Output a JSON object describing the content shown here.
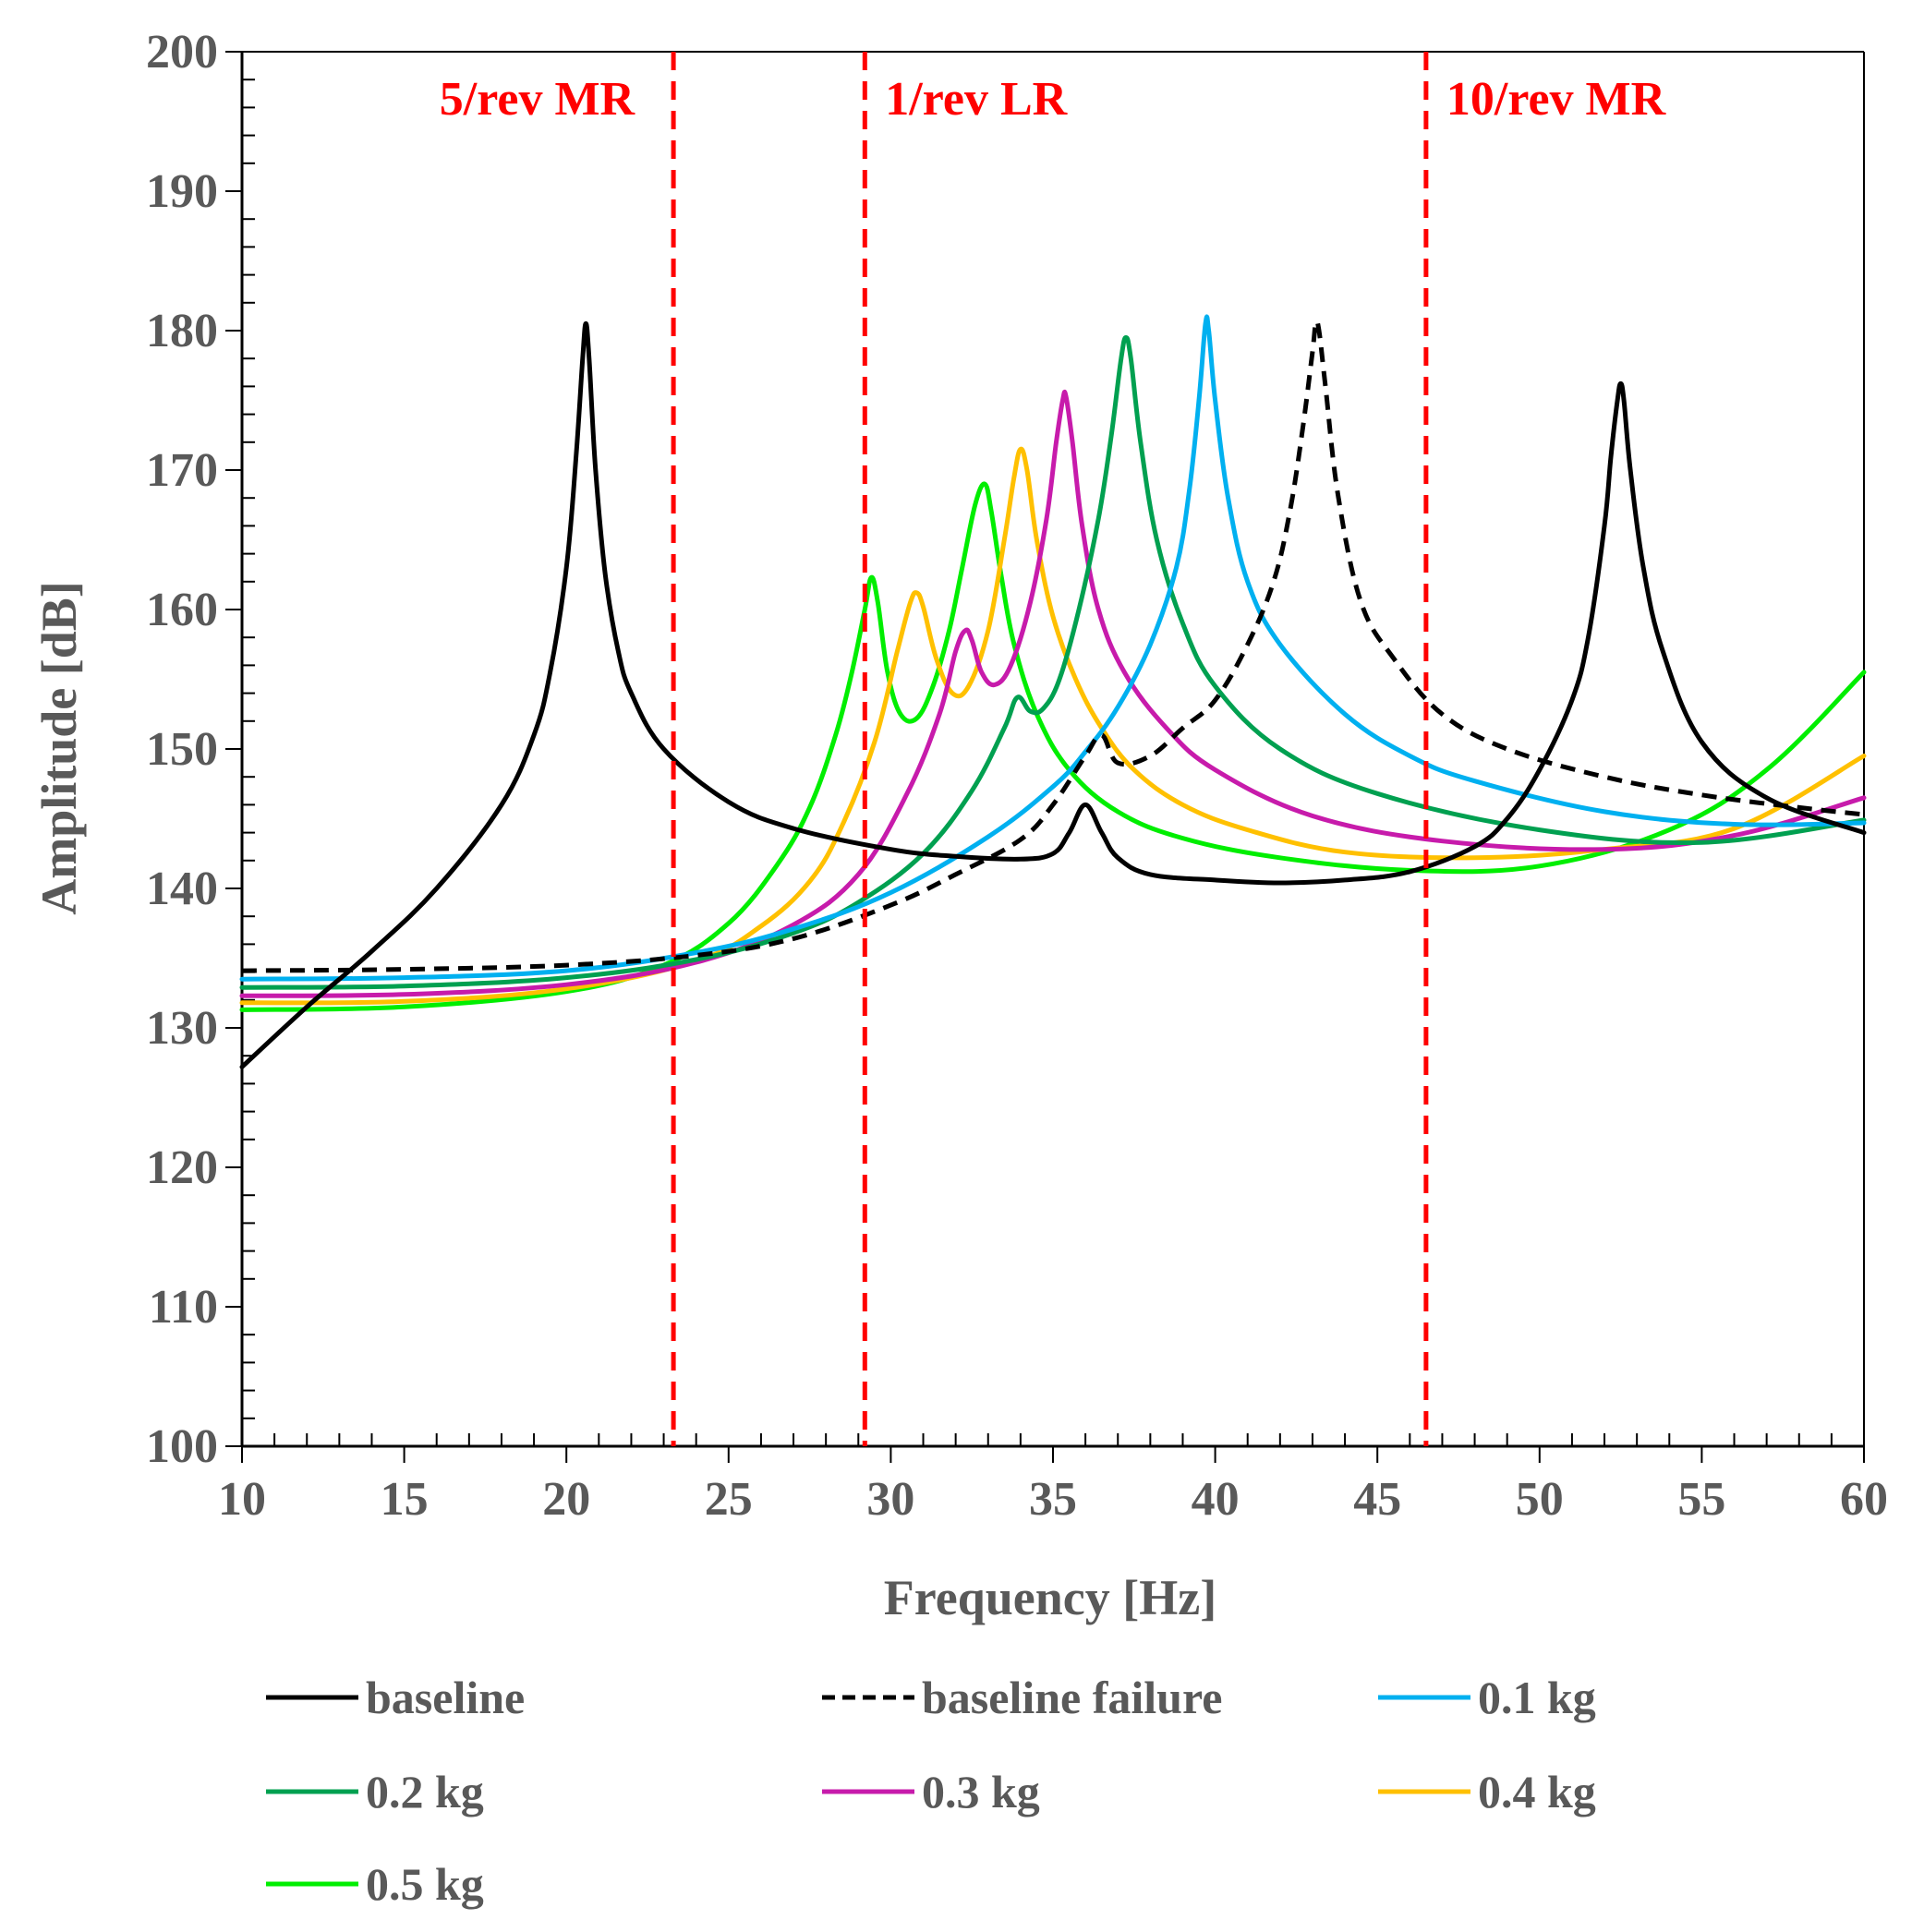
{
  "chart_data": {
    "type": "line",
    "xlabel": "Frequency [Hz]",
    "ylabel": "Amplitude [dB]",
    "xlim": [
      10,
      60
    ],
    "ylim": [
      100,
      200
    ],
    "x_ticks": [
      "10",
      "15",
      "20",
      "25",
      "30",
      "35",
      "40",
      "45",
      "50",
      "55",
      "60"
    ],
    "y_ticks": [
      "100",
      "110",
      "120",
      "130",
      "140",
      "150",
      "160",
      "170",
      "180",
      "190",
      "200"
    ],
    "grid": false,
    "legend_position": "bottom",
    "annotations": [
      {
        "label": "5/rev MR",
        "x": 23.3,
        "color": "#ff0000",
        "style": "dashed"
      },
      {
        "label": "1/rev LR",
        "x": 29.2,
        "color": "#ff0000",
        "style": "dashed"
      },
      {
        "label": "10/rev MR",
        "x": 46.5,
        "color": "#ff0000",
        "style": "dashed"
      }
    ],
    "series": [
      {
        "name": "baseline",
        "color": "#000000",
        "dash": false,
        "x": [
          10,
          12,
          14,
          16,
          18,
          19,
          19.5,
          20,
          20.3,
          20.5,
          20.6,
          20.7,
          20.9,
          21.2,
          21.6,
          22,
          23,
          25,
          27,
          30,
          32,
          34,
          35,
          35.5,
          36,
          36.5,
          37,
          38,
          40,
          42,
          44,
          46,
          48,
          49,
          50,
          51,
          51.5,
          52,
          52.2,
          52.4,
          52.5,
          52.6,
          52.8,
          53.2,
          53.8,
          55,
          57,
          60
        ],
        "y": [
          127.2,
          131.5,
          135.5,
          140,
          146,
          151,
          155.5,
          163,
          171,
          178,
          180.5,
          178,
          170,
          162.5,
          157,
          154,
          150,
          146.2,
          144.3,
          142.8,
          142.3,
          142.1,
          142.5,
          144,
          146,
          144,
          142.2,
          141,
          140.6,
          140.4,
          140.6,
          141.2,
          143,
          145,
          148.5,
          153.5,
          158,
          166,
          171,
          175,
          176.2,
          175,
          170,
          163,
          157,
          150.5,
          146.5,
          144
        ]
      },
      {
        "name": "baseline failure",
        "color": "#000000",
        "dash": true,
        "x": [
          10,
          15,
          20,
          24,
          27,
          30,
          32,
          34,
          35,
          36,
          36.5,
          37,
          38,
          39,
          40,
          41,
          41.8,
          42.3,
          42.7,
          43,
          43.1,
          43.2,
          43.4,
          43.8,
          44.5,
          45.5,
          47,
          49,
          52,
          55,
          58,
          60
        ],
        "y": [
          134.1,
          134.2,
          134.5,
          135.2,
          136.4,
          138.8,
          141,
          143.5,
          146,
          149.5,
          151,
          149,
          149.5,
          151.5,
          153.5,
          157.5,
          162,
          167,
          173,
          178.5,
          180.5,
          180,
          176,
          168,
          160.5,
          156.5,
          152.5,
          150,
          148,
          146.7,
          145.8,
          145.3
        ]
      },
      {
        "name": "0.1 kg",
        "color": "#00b0f0",
        "dash": false,
        "x": [
          10,
          15,
          20,
          24,
          27,
          30,
          33,
          35,
          36,
          37,
          38,
          38.8,
          39.2,
          39.5,
          39.7,
          39.8,
          40,
          40.4,
          41,
          42,
          44,
          46,
          48,
          52,
          56,
          60
        ],
        "y": [
          133.5,
          133.6,
          134.1,
          135.4,
          137.1,
          139.7,
          143.7,
          147.3,
          149.8,
          153,
          157.5,
          163,
          168.5,
          175,
          180.5,
          180,
          175,
          168,
          162,
          157.5,
          152.5,
          149.5,
          147.7,
          145.5,
          144.6,
          144.7
        ]
      },
      {
        "name": "0.2 kg",
        "color": "#00a050",
        "dash": false,
        "x": [
          10,
          15,
          20,
          24,
          27,
          29,
          31,
          32.5,
          33.5,
          33.9,
          34.3,
          34.7,
          35.2,
          35.8,
          36.4,
          36.8,
          37.1,
          37.25,
          37.4,
          37.7,
          38.2,
          39,
          40,
          42,
          45,
          50,
          55,
          60
        ],
        "y": [
          132.9,
          133,
          133.6,
          134.9,
          136.8,
          139,
          142.5,
          147,
          151.5,
          153.7,
          152.7,
          152.9,
          155,
          160,
          166.5,
          172.5,
          178,
          179.5,
          178,
          172,
          165,
          159,
          154.5,
          150,
          146.8,
          144.2,
          143.3,
          144.9
        ]
      },
      {
        "name": "0.3 kg",
        "color": "#c71bab",
        "dash": false,
        "x": [
          10,
          15,
          20,
          24,
          27,
          29,
          30.5,
          31.5,
          32,
          32.3,
          32.5,
          32.8,
          33.2,
          33.7,
          34.3,
          34.8,
          35.1,
          35.3,
          35.4,
          35.6,
          35.9,
          36.4,
          37.2,
          38.5,
          40,
          43,
          47,
          52,
          56,
          60
        ],
        "y": [
          132.3,
          132.4,
          133.1,
          134.7,
          137.4,
          141,
          146.8,
          152.5,
          157,
          158.5,
          157.8,
          155.5,
          154.6,
          156,
          160.5,
          166.5,
          172,
          175,
          175.3,
          172,
          166,
          160,
          155.5,
          151.5,
          148.5,
          145.2,
          143.4,
          142.8,
          143.8,
          146.5
        ]
      },
      {
        "name": "0.4 kg",
        "color": "#ffc000",
        "dash": false,
        "x": [
          10,
          15,
          20,
          24,
          26,
          27.5,
          28.5,
          29.5,
          30.2,
          30.6,
          30.8,
          31,
          31.4,
          31.9,
          32.4,
          33,
          33.5,
          33.8,
          34,
          34.2,
          34.5,
          35,
          35.7,
          36.5,
          37.5,
          39,
          41,
          44,
          48,
          52,
          56,
          60
        ],
        "y": [
          131.8,
          131.9,
          132.8,
          134.8,
          137.3,
          140.5,
          144.5,
          150.5,
          157,
          160.5,
          161.2,
          160.2,
          156.5,
          154,
          154.5,
          158.5,
          165,
          169.5,
          171.5,
          170,
          165,
          159.5,
          155,
          151.5,
          148.5,
          146,
          144.2,
          142.6,
          142.2,
          142.8,
          144.3,
          149.5
        ]
      },
      {
        "name": "0.5 kg",
        "color": "#00ee00",
        "dash": false,
        "x": [
          10,
          15,
          20,
          23,
          25,
          26.5,
          27.5,
          28.3,
          28.8,
          29.2,
          29.4,
          29.6,
          29.9,
          30.3,
          30.8,
          31.3,
          31.8,
          32.2,
          32.6,
          32.9,
          33.1,
          33.4,
          33.8,
          34.5,
          35.5,
          37,
          39,
          42,
          46,
          50,
          54,
          57,
          60
        ],
        "y": [
          131.3,
          131.5,
          132.6,
          134.5,
          137.5,
          141.7,
          145.8,
          151,
          155.5,
          160,
          162.3,
          160.5,
          155.5,
          152.5,
          152.2,
          154.5,
          158.5,
          163,
          167.5,
          169,
          167,
          162.5,
          157.5,
          152.5,
          148.5,
          145.5,
          143.6,
          142.2,
          141.3,
          141.6,
          144.2,
          148.5,
          155.5
        ]
      }
    ]
  }
}
